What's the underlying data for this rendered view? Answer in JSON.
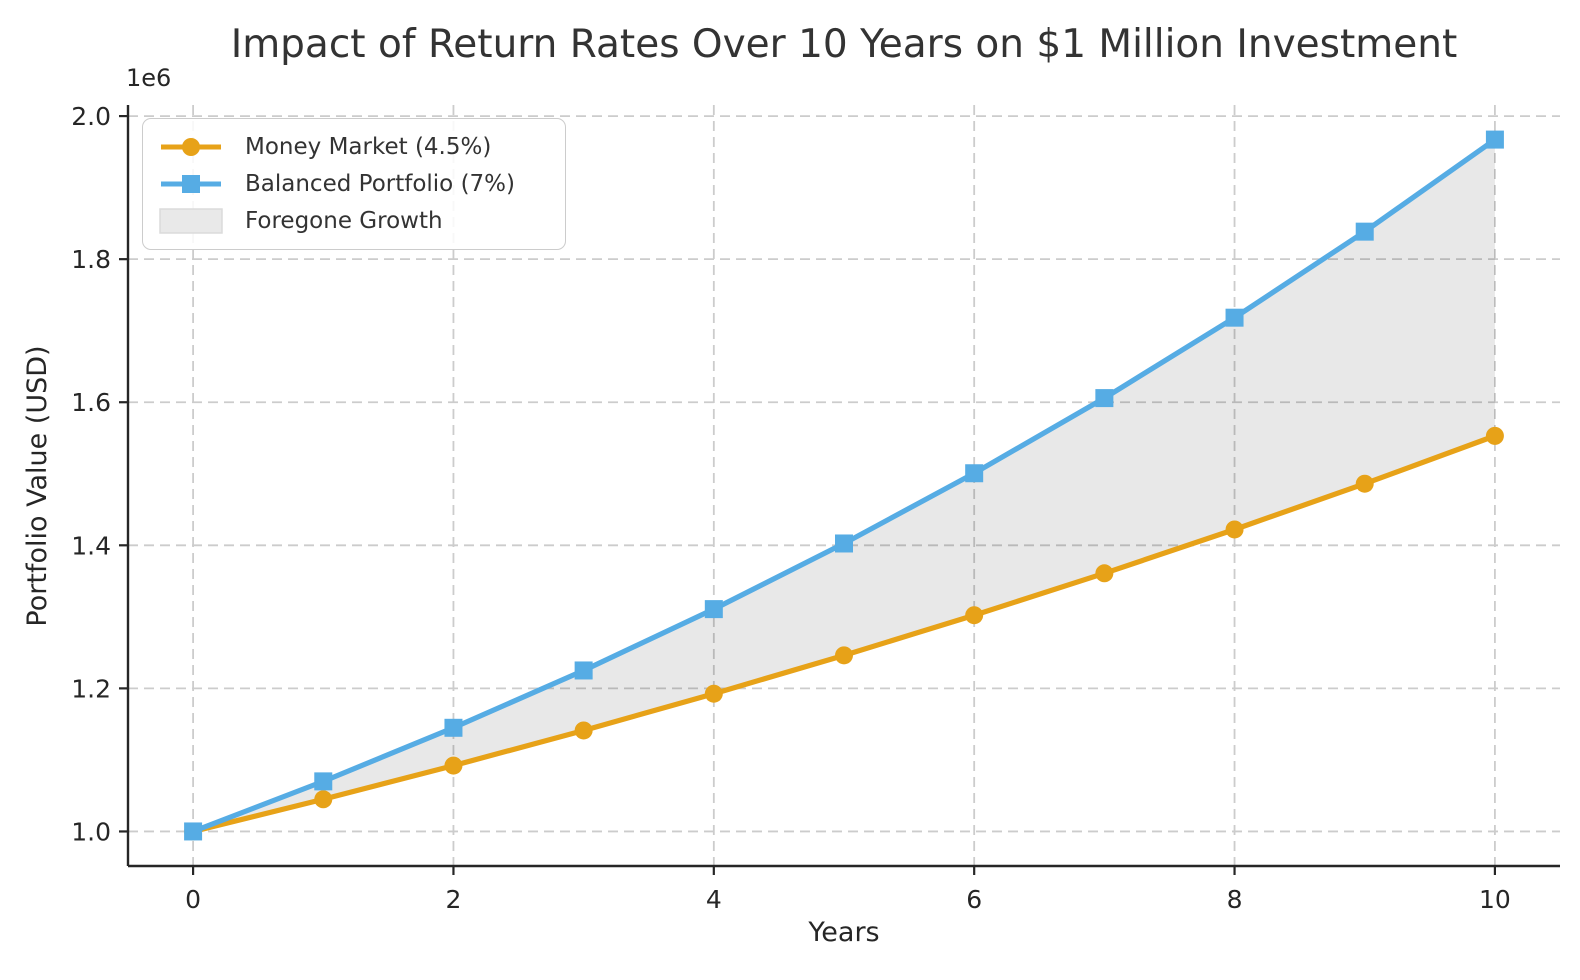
{
  "chart_data": {
    "type": "line",
    "title": "Impact of Return Rates Over 10 Years on $1 Million Investment",
    "xlabel": "Years",
    "ylabel": "Portfolio Value (USD)",
    "y_offset_label": "1e6",
    "x": [
      0,
      1,
      2,
      3,
      4,
      5,
      6,
      7,
      8,
      9,
      10
    ],
    "series": [
      {
        "name": "Money Market (4.5%)",
        "color": "#E7A218",
        "marker": "circle",
        "values": [
          1000000,
          1045000,
          1092025,
          1141166,
          1192519,
          1246182,
          1302260,
          1360862,
          1422101,
          1486095,
          1552969
        ]
      },
      {
        "name": "Balanced Portfolio (7%)",
        "color": "#56ACE4",
        "marker": "square",
        "values": [
          1000000,
          1070000,
          1144900,
          1225043,
          1310796,
          1402552,
          1500730,
          1605781,
          1718186,
          1838459,
          1967151
        ]
      }
    ],
    "fill_between": {
      "name": "Foregone Growth",
      "color": "rgba(0,0,0,0.09)",
      "legend_swatch_color": "#E9E9E9",
      "upper_series": "Balanced Portfolio (7%)",
      "lower_series": "Money Market (4.5%)"
    },
    "xlim": [
      -0.5,
      10.5
    ],
    "ylim": [
      951700,
      2015500
    ],
    "xticks": [
      0,
      2,
      4,
      6,
      8,
      10
    ],
    "xtick_labels": [
      "0",
      "2",
      "4",
      "6",
      "8",
      "10"
    ],
    "yticks": [
      1000000,
      1200000,
      1400000,
      1600000,
      1800000,
      2000000
    ],
    "ytick_labels": [
      "1.0",
      "1.2",
      "1.4",
      "1.6",
      "1.8",
      "2.0"
    ],
    "grid": true,
    "grid_color": "#CCCCCC",
    "grid_style": "dashed",
    "spine_color": "#262626",
    "tick_label_color": "#262626",
    "legend_position": "upper left",
    "background_color": "#FFFFFF"
  }
}
